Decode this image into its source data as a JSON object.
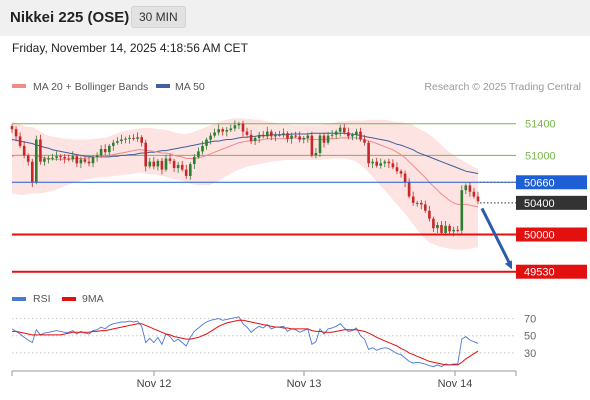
{
  "header": {
    "title": "Nikkei 225 (OSE)",
    "interval": "30 MIN"
  },
  "timestamp": "Friday, November 14, 2025 4:18:56 AM CET",
  "credit": "Research © 2025 Trading Central",
  "colors": {
    "candle_up": "#2e7d32",
    "candle_down": "#c62828",
    "bands_fill": "#fde3e1",
    "ma20": "#f28a8a",
    "ma50": "#3f5fa0",
    "support": "#e31010",
    "pivot": "#1f5fd6",
    "resistance": "#7ab648",
    "rsi": "#4a78d6",
    "rsi_ma": "#e31010"
  },
  "chart_data": [
    {
      "type": "candlestick",
      "legend": [
        {
          "name": "MA 20 + Bollinger Bands",
          "color": "#f28a8a"
        },
        {
          "name": "MA 50",
          "color": "#3f5fa0"
        }
      ],
      "ylim": [
        49400,
        51750
      ],
      "x_labels": [
        "Nov 12",
        "Nov 13",
        "Nov 14"
      ],
      "levels": [
        {
          "value": 51400,
          "label": "51400",
          "kind": "resistance"
        },
        {
          "value": 51000,
          "label": "51000",
          "kind": "resistance"
        },
        {
          "value": 50660,
          "label": "50660",
          "kind": "pivot"
        },
        {
          "value": 50400,
          "label": "50400",
          "kind": "current"
        },
        {
          "value": 50000,
          "label": "50000",
          "kind": "support"
        },
        {
          "value": 49530,
          "label": "49530",
          "kind": "support"
        }
      ],
      "close": [
        51330,
        51240,
        51120,
        51000,
        50920,
        50660,
        51200,
        50920,
        50960,
        50960,
        50970,
        50990,
        50980,
        50960,
        50950,
        50990,
        50900,
        50950,
        50920,
        50900,
        50980,
        51000,
        51080,
        51040,
        51120,
        51160,
        51180,
        51200,
        51210,
        51220,
        51210,
        51230,
        51160,
        50860,
        50920,
        50860,
        50930,
        50820,
        50960,
        50930,
        50840,
        50880,
        50820,
        50740,
        50890,
        50980,
        51050,
        51120,
        51200,
        51250,
        51290,
        51330,
        51300,
        51320,
        51340,
        51380,
        51400,
        51300,
        51260,
        51180,
        51220,
        51260,
        51240,
        51300,
        51240,
        51260,
        51260,
        51280,
        51210,
        51250,
        51240,
        51200,
        51220,
        51250,
        51000,
        51030,
        51250,
        51160,
        51250,
        51260,
        51300,
        51350,
        51290,
        51240,
        51260,
        51300,
        51200,
        51160,
        50900,
        50920,
        50870,
        50900,
        50920,
        50900,
        50850,
        50800,
        50770,
        50660,
        50480,
        50400,
        50400,
        50380,
        50300,
        50200,
        50080,
        50120,
        50020,
        50110,
        50040,
        50060,
        50050,
        50560,
        50620,
        50540,
        50480,
        50420
      ],
      "ma20": [
        50990,
        51000,
        51000,
        51000,
        51000,
        51000,
        50990,
        50980,
        50970,
        50960,
        50950,
        50950,
        50950,
        50950,
        50950,
        50960,
        50960,
        50960,
        50960,
        50970,
        50980,
        50980,
        50990,
        50990,
        51000,
        51010,
        51020,
        51030,
        51040,
        51050,
        51060,
        51070,
        51070,
        51060,
        51060,
        51050,
        51040,
        51030,
        51030,
        51020,
        51000,
        50990,
        50980,
        50960,
        50960,
        50960,
        50970,
        50980,
        51000,
        51020,
        51040,
        51060,
        51080,
        51100,
        51120,
        51140,
        51160,
        51170,
        51180,
        51180,
        51190,
        51190,
        51200,
        51210,
        51210,
        51210,
        51210,
        51210,
        51210,
        51220,
        51220,
        51210,
        51210,
        51210,
        51200,
        51200,
        51200,
        51200,
        51210,
        51210,
        51210,
        51220,
        51220,
        51220,
        51220,
        51220,
        51210,
        51200,
        51180,
        51170,
        51150,
        51130,
        51110,
        51090,
        51070,
        51040,
        51010,
        50970,
        50920,
        50870,
        50820,
        50770,
        50720,
        50660,
        50610,
        50560,
        50510,
        50470,
        50430,
        50400,
        50380,
        50380,
        50380,
        50370,
        50360,
        50350
      ],
      "bb_upper": [
        51420,
        51410,
        51390,
        51370,
        51360,
        51360,
        51330,
        51300,
        51270,
        51250,
        51240,
        51230,
        51220,
        51210,
        51210,
        51200,
        51200,
        51200,
        51200,
        51200,
        51210,
        51210,
        51220,
        51220,
        51240,
        51260,
        51280,
        51300,
        51310,
        51320,
        51330,
        51340,
        51340,
        51350,
        51350,
        51340,
        51330,
        51330,
        51320,
        51310,
        51290,
        51280,
        51270,
        51270,
        51280,
        51300,
        51320,
        51340,
        51360,
        51380,
        51400,
        51420,
        51440,
        51450,
        51460,
        51470,
        51470,
        51470,
        51460,
        51460,
        51450,
        51450,
        51440,
        51430,
        51420,
        51410,
        51400,
        51400,
        51390,
        51380,
        51380,
        51380,
        51380,
        51380,
        51380,
        51380,
        51380,
        51390,
        51400,
        51410,
        51420,
        51430,
        51430,
        51440,
        51440,
        51440,
        51440,
        51440,
        51450,
        51450,
        51450,
        51450,
        51450,
        51440,
        51430,
        51420,
        51420,
        51410,
        51400,
        51380,
        51350,
        51320,
        51300,
        51260,
        51220,
        51180,
        51130,
        51080,
        51040,
        51000,
        50970,
        50940,
        50910,
        50880,
        50850,
        50830
      ],
      "bb_lower": [
        50520,
        50510,
        50500,
        50500,
        50510,
        50520,
        50520,
        50520,
        50530,
        50540,
        50550,
        50570,
        50590,
        50610,
        50630,
        50650,
        50660,
        50680,
        50690,
        50700,
        50710,
        50720,
        50720,
        50730,
        50730,
        50740,
        50740,
        50750,
        50760,
        50760,
        50770,
        50780,
        50780,
        50770,
        50760,
        50760,
        50750,
        50740,
        50730,
        50710,
        50700,
        50690,
        50680,
        50660,
        50640,
        50630,
        50620,
        50620,
        50620,
        50630,
        50650,
        50680,
        50710,
        50740,
        50770,
        50800,
        50820,
        50840,
        50860,
        50870,
        50880,
        50890,
        50900,
        50910,
        50920,
        50930,
        50930,
        50940,
        50940,
        50940,
        50940,
        50940,
        50940,
        50940,
        50940,
        50940,
        50940,
        50950,
        50950,
        50960,
        50960,
        50960,
        50960,
        50950,
        50940,
        50920,
        50880,
        50840,
        50780,
        50730,
        50670,
        50610,
        50560,
        50500,
        50440,
        50380,
        50320,
        50260,
        50200,
        50130,
        50060,
        50000,
        49950,
        49900,
        49880,
        49860,
        49840,
        49830,
        49820,
        49810,
        49810,
        49810,
        49810,
        49820,
        49830,
        49840
      ],
      "ma50": [
        51200,
        51190,
        51180,
        51170,
        51160,
        51150,
        51130,
        51120,
        51100,
        51090,
        51070,
        51060,
        51050,
        51040,
        51030,
        51020,
        51010,
        51000,
        50990,
        50990,
        50980,
        50980,
        50980,
        50980,
        50980,
        50990,
        50990,
        51000,
        51000,
        51010,
        51010,
        51020,
        51030,
        51030,
        51040,
        51040,
        51050,
        51060,
        51060,
        51070,
        51080,
        51090,
        51100,
        51110,
        51120,
        51130,
        51140,
        51150,
        51160,
        51170,
        51180,
        51180,
        51190,
        51200,
        51200,
        51210,
        51220,
        51230,
        51230,
        51240,
        51240,
        51250,
        51250,
        51250,
        51260,
        51260,
        51260,
        51260,
        51260,
        51270,
        51270,
        51270,
        51270,
        51270,
        51280,
        51280,
        51280,
        51280,
        51280,
        51280,
        51280,
        51280,
        51280,
        51270,
        51270,
        51260,
        51250,
        51240,
        51230,
        51220,
        51210,
        51200,
        51190,
        51180,
        51160,
        51140,
        51130,
        51110,
        51090,
        51070,
        51040,
        51020,
        51000,
        50980,
        50960,
        50940,
        50920,
        50900,
        50880,
        50860,
        50840,
        50820,
        50800,
        50790,
        50780,
        50770
      ]
    },
    {
      "type": "line",
      "legend": [
        {
          "name": "RSI",
          "color": "#4a78d6"
        },
        {
          "name": "9MA",
          "color": "#e31010"
        }
      ],
      "ylim": [
        10,
        80
      ],
      "yticks": [
        70,
        50,
        30
      ],
      "series": [
        {
          "name": "RSI",
          "values": [
            58,
            55,
            52,
            48,
            45,
            42,
            57,
            51,
            53,
            54,
            55,
            56,
            55,
            54,
            54,
            56,
            52,
            55,
            53,
            52,
            56,
            57,
            60,
            58,
            62,
            64,
            65,
            66,
            66,
            67,
            66,
            67,
            61,
            42,
            47,
            42,
            48,
            40,
            52,
            49,
            43,
            46,
            42,
            38,
            48,
            55,
            59,
            63,
            66,
            68,
            69,
            70,
            68,
            69,
            70,
            71,
            72,
            64,
            60,
            54,
            58,
            61,
            59,
            63,
            58,
            60,
            60,
            61,
            55,
            58,
            57,
            54,
            56,
            58,
            40,
            43,
            58,
            52,
            58,
            59,
            61,
            64,
            59,
            55,
            56,
            59,
            50,
            46,
            34,
            36,
            33,
            35,
            36,
            35,
            32,
            29,
            28,
            24,
            20,
            18,
            19,
            18,
            17,
            15,
            14,
            16,
            14,
            17,
            16,
            17,
            17,
            46,
            49,
            45,
            43,
            41
          ]
        },
        {
          "name": "9MA",
          "values": [
            55,
            55,
            54,
            53,
            52,
            51,
            51,
            51,
            51,
            51,
            51,
            51,
            51,
            52,
            53,
            54,
            54,
            54,
            54,
            54,
            55,
            55,
            56,
            56,
            57,
            58,
            59,
            60,
            61,
            62,
            63,
            64,
            64,
            62,
            60,
            58,
            56,
            54,
            52,
            51,
            49,
            48,
            47,
            46,
            46,
            47,
            48,
            50,
            52,
            55,
            58,
            61,
            63,
            65,
            66,
            67,
            68,
            68,
            67,
            66,
            65,
            64,
            63,
            62,
            61,
            60,
            60,
            59,
            59,
            58,
            58,
            58,
            58,
            58,
            56,
            55,
            55,
            54,
            54,
            54,
            55,
            56,
            57,
            57,
            57,
            57,
            56,
            55,
            53,
            51,
            48,
            46,
            44,
            42,
            40,
            38,
            35,
            33,
            30,
            28,
            26,
            24,
            22,
            20,
            19,
            18,
            17,
            16,
            16,
            16,
            16,
            19,
            23,
            26,
            29,
            32
          ]
        }
      ]
    }
  ],
  "x_axis": {
    "labels": [
      "Nov 12",
      "Nov 13",
      "Nov 14"
    ]
  }
}
